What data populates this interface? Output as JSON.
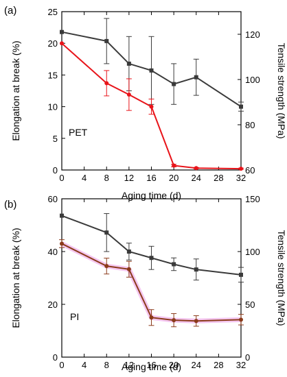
{
  "chart_data": [
    {
      "type": "line",
      "panel_label": "(a)",
      "inner_label": "PET",
      "xlabel": "Aging time (d)",
      "ylabel_left": "Elongation  at break (%)",
      "ylabel_right": "Tensile strength (MPa)",
      "x_ticks": [
        0,
        4,
        8,
        12,
        16,
        20,
        24,
        28,
        32
      ],
      "xlim": [
        0,
        32
      ],
      "ylim_left": [
        0,
        25
      ],
      "yticks_left": [
        0,
        5,
        10,
        15,
        20,
        25
      ],
      "ylim_right": [
        60,
        130
      ],
      "yticks_right": [
        60,
        80,
        100,
        120
      ],
      "series": [
        {
          "axis": "right",
          "color": "#3a3a3a",
          "marker": "square",
          "x": [
            0,
            8,
            12,
            16,
            20,
            24,
            32
          ],
          "y": [
            121,
            117,
            107,
            104,
            98,
            101,
            88
          ],
          "err": [
            0,
            10,
            12,
            15,
            9,
            8,
            2
          ]
        },
        {
          "axis": "left",
          "color": "#e8141a",
          "marker": "circle",
          "x": [
            0,
            8,
            12,
            16,
            20,
            24,
            32
          ],
          "y": [
            20,
            13.7,
            11.9,
            10.0,
            0.7,
            0.3,
            0.2
          ],
          "err": [
            0,
            2.0,
            2.5,
            1.2,
            0.2,
            0.1,
            0.1
          ]
        }
      ]
    },
    {
      "type": "line",
      "panel_label": "(b)",
      "inner_label": "PI",
      "xlabel": "Aging time (d)",
      "ylabel_left": "Elongation  at break (%)",
      "ylabel_right": "Tensile strength (MPa)",
      "x_ticks": [
        0,
        4,
        8,
        12,
        16,
        20,
        24,
        28,
        32
      ],
      "xlim": [
        0,
        32
      ],
      "ylim_left": [
        0,
        60
      ],
      "yticks_left": [
        0,
        20,
        40,
        60
      ],
      "ylim_right": [
        0,
        150
      ],
      "yticks_right": [
        0,
        50,
        100,
        150
      ],
      "series": [
        {
          "axis": "right",
          "color": "#3a3a3a",
          "marker": "square",
          "x": [
            0,
            8,
            12,
            16,
            20,
            24,
            32
          ],
          "y": [
            134,
            118,
            100,
            94,
            88,
            83,
            78
          ],
          "err": [
            0,
            18,
            8,
            11,
            6,
            10,
            7
          ]
        },
        {
          "axis": "left",
          "color": "#8b3a1a",
          "marker": "circle",
          "x": [
            0,
            8,
            12,
            16,
            20,
            24,
            32
          ],
          "y": [
            43,
            34.5,
            33.3,
            15,
            14,
            13.7,
            14.2
          ],
          "err": [
            1.5,
            3,
            3,
            3,
            2.5,
            2,
            2
          ]
        }
      ]
    }
  ]
}
